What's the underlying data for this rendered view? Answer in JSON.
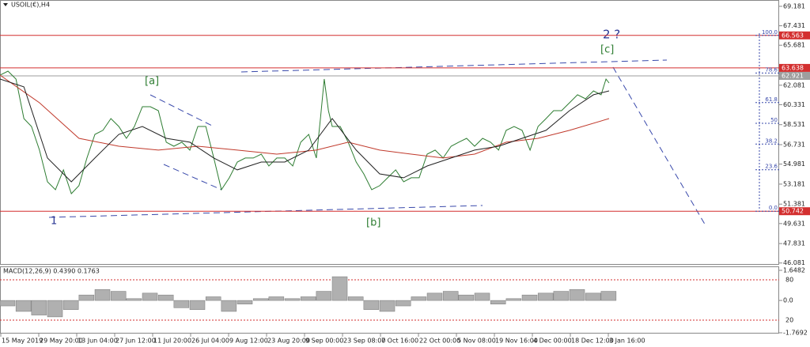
{
  "chart_data": [
    {
      "type": "line",
      "title": "USOIL(€),H4",
      "xlim": [
        0,
        205.2
      ],
      "ylim": [
        45.92,
        69.75
      ],
      "xticks": [
        {
          "value": 0,
          "label": "15 May 2019"
        },
        {
          "value": 10,
          "label": "29 May 20:00"
        },
        {
          "value": 20,
          "label": "13 Jun 04:00"
        },
        {
          "value": 30,
          "label": "27 Jun 12:00"
        },
        {
          "value": 40,
          "label": "11 Jul 20:00"
        },
        {
          "value": 50,
          "label": "26 Jul 04:00"
        },
        {
          "value": 60,
          "label": "9 Aug 12:00"
        },
        {
          "value": 70,
          "label": "23 Aug 20:00"
        },
        {
          "value": 80,
          "label": "9 Sep 00:00"
        },
        {
          "value": 90,
          "label": "23 Sep 08:00"
        },
        {
          "value": 100,
          "label": "7 Oct 16:00"
        },
        {
          "value": 110,
          "label": "22 Oct 00:00"
        },
        {
          "value": 120,
          "label": "5 Nov 08:00"
        },
        {
          "value": 130,
          "label": "19 Nov 16:00"
        },
        {
          "value": 140,
          "label": "4 Dec 00:00"
        },
        {
          "value": 150,
          "label": "18 Dec 12:00"
        },
        {
          "value": 160,
          "label": "3 Jan 16:00"
        }
      ],
      "yticks": [
        69.181,
        67.431,
        65.681,
        62.081,
        60.331,
        58.531,
        56.731,
        54.981,
        53.181,
        51.381,
        49.631,
        47.831,
        46.081
      ],
      "series": [
        {
          "color": "#2e7d32",
          "x": [
            0,
            2.1,
            4.2,
            6.3,
            8.3,
            10.4,
            12.5,
            14.6,
            16.7,
            18.8,
            20.8,
            22.9,
            25,
            27.1,
            29.2,
            31.3,
            33.3,
            35.4,
            37.5,
            39.6,
            41.7,
            43.8,
            45.8,
            47.9,
            50,
            52.1,
            54.2,
            56.3,
            58.3,
            60.4,
            62.5,
            64.6,
            66.7,
            68.8,
            70.8,
            72.9,
            75,
            77.1,
            79.2,
            81.3,
            83.3,
            84.4,
            85.4,
            86.5,
            87.5,
            89.6,
            91.7,
            93.8,
            95.8,
            97.9,
            100,
            102.1,
            104.2,
            106.3,
            108.3,
            110.4,
            112.5,
            114.6,
            116.7,
            118.8,
            120.8,
            122.9,
            125,
            127.1,
            129.2,
            131.3,
            133.3,
            135.4,
            137.5,
            139.6,
            141.7,
            143.8,
            145.8,
            147.9,
            150,
            152.1,
            154.2,
            156.3,
            158.3,
            159.6,
            160.4
          ],
          "values": [
            62.99,
            63.35,
            62.64,
            59.08,
            58.37,
            56.24,
            53.39,
            52.68,
            54.46,
            52.32,
            53.04,
            55.53,
            57.66,
            58.02,
            59.08,
            58.37,
            57.3,
            58.37,
            60.15,
            60.15,
            59.79,
            56.95,
            56.59,
            56.95,
            56.24,
            58.37,
            58.37,
            55.53,
            52.68,
            53.75,
            55.17,
            55.53,
            55.53,
            55.88,
            54.81,
            55.53,
            55.53,
            54.81,
            56.95,
            57.66,
            55.53,
            59.08,
            62.64,
            59.79,
            58.37,
            58.37,
            56.95,
            55.17,
            54.1,
            52.68,
            53.04,
            53.75,
            54.46,
            53.39,
            53.75,
            53.75,
            55.88,
            56.24,
            55.53,
            56.59,
            56.95,
            57.3,
            56.59,
            57.3,
            56.95,
            56.24,
            58.02,
            58.37,
            58.02,
            56.24,
            58.37,
            59.08,
            59.79,
            59.79,
            60.5,
            61.22,
            60.86,
            61.57,
            61.22,
            62.64,
            62.28
          ]
        },
        {
          "color": "#c0392b",
          "x": [
            0,
            10.4,
            20.8,
            31.3,
            41.7,
            52.1,
            62.5,
            72.9,
            83.3,
            91.7,
            100,
            108.3,
            116.7,
            125,
            133.3,
            141.7,
            150,
            160.4
          ],
          "values": [
            62.99,
            60.5,
            57.3,
            56.59,
            56.24,
            56.59,
            56.24,
            55.88,
            56.24,
            56.95,
            56.24,
            55.88,
            55.53,
            55.88,
            56.95,
            57.3,
            58.02,
            59.08
          ]
        },
        {
          "color": "#222222",
          "x": [
            0,
            6.3,
            12.5,
            18.8,
            25,
            31.3,
            37.5,
            43.8,
            50,
            56.3,
            62.5,
            68.8,
            75,
            81.3,
            87.5,
            93.8,
            100,
            106.3,
            112.5,
            118.8,
            125,
            131.3,
            137.5,
            143.8,
            150,
            156.3,
            160.4
          ],
          "values": [
            62.64,
            61.93,
            55.53,
            53.39,
            55.53,
            57.66,
            58.37,
            57.3,
            56.95,
            55.53,
            54.46,
            55.17,
            55.17,
            56.24,
            59.08,
            56.24,
            54.1,
            53.75,
            54.81,
            55.53,
            56.24,
            56.59,
            57.3,
            58.02,
            59.79,
            61.22,
            61.57
          ]
        }
      ],
      "price_levels": [
        {
          "value": 66.563,
          "color": "#d32f2f"
        },
        {
          "value": 63.638,
          "color": "#d32f2f"
        },
        {
          "value": 62.921,
          "color": "#9e9e9e"
        },
        {
          "value": 50.742,
          "color": "#d32f2f"
        }
      ],
      "fib_levels": [
        {
          "value": 100,
          "label": "100.0"
        },
        78.6,
        61.8,
        50,
        38.2,
        23.6,
        {
          "value": 0,
          "label": "0.0"
        }
      ],
      "annotations": [
        "[a]",
        "[b]",
        "[c]",
        "2 ?",
        "1"
      ]
    },
    {
      "type": "bar",
      "title": "MACD(12,26,9) 0.4390 0.1763",
      "color": "#b0b0b0",
      "ylim": [
        -1.8125,
        1.8645
      ],
      "yticks": [
        1.6482,
        {
          "value": 0,
          "label": "0.0"
        },
        -1.7692
      ],
      "y2lim": [
        0,
        100
      ],
      "y2ticks": [
        80,
        20
      ],
      "x": [
        0,
        4.2,
        8.3,
        12.5,
        16.7,
        20.8,
        25,
        29.2,
        33.3,
        37.5,
        41.7,
        45.8,
        50,
        54.2,
        58.3,
        62.5,
        66.7,
        70.8,
        75,
        79.2,
        83.3,
        87.5,
        91.7,
        95.8,
        100,
        104.2,
        108.3,
        112.5,
        116.7,
        120.8,
        125,
        129.2,
        133.3,
        137.5,
        141.7,
        145.8,
        150,
        154.2,
        158.3
      ],
      "values": [
        -0.3,
        -0.6,
        -0.8,
        -0.9,
        -0.5,
        0.3,
        0.6,
        0.5,
        0.1,
        0.4,
        0.3,
        -0.4,
        -0.5,
        0.2,
        -0.6,
        -0.2,
        0.1,
        0.2,
        0.1,
        0.2,
        0.5,
        1.3,
        0.2,
        -0.5,
        -0.6,
        -0.3,
        0.2,
        0.4,
        0.5,
        0.3,
        0.4,
        -0.2,
        0.1,
        0.3,
        0.4,
        0.5,
        0.6,
        0.4,
        0.5
      ]
    }
  ]
}
